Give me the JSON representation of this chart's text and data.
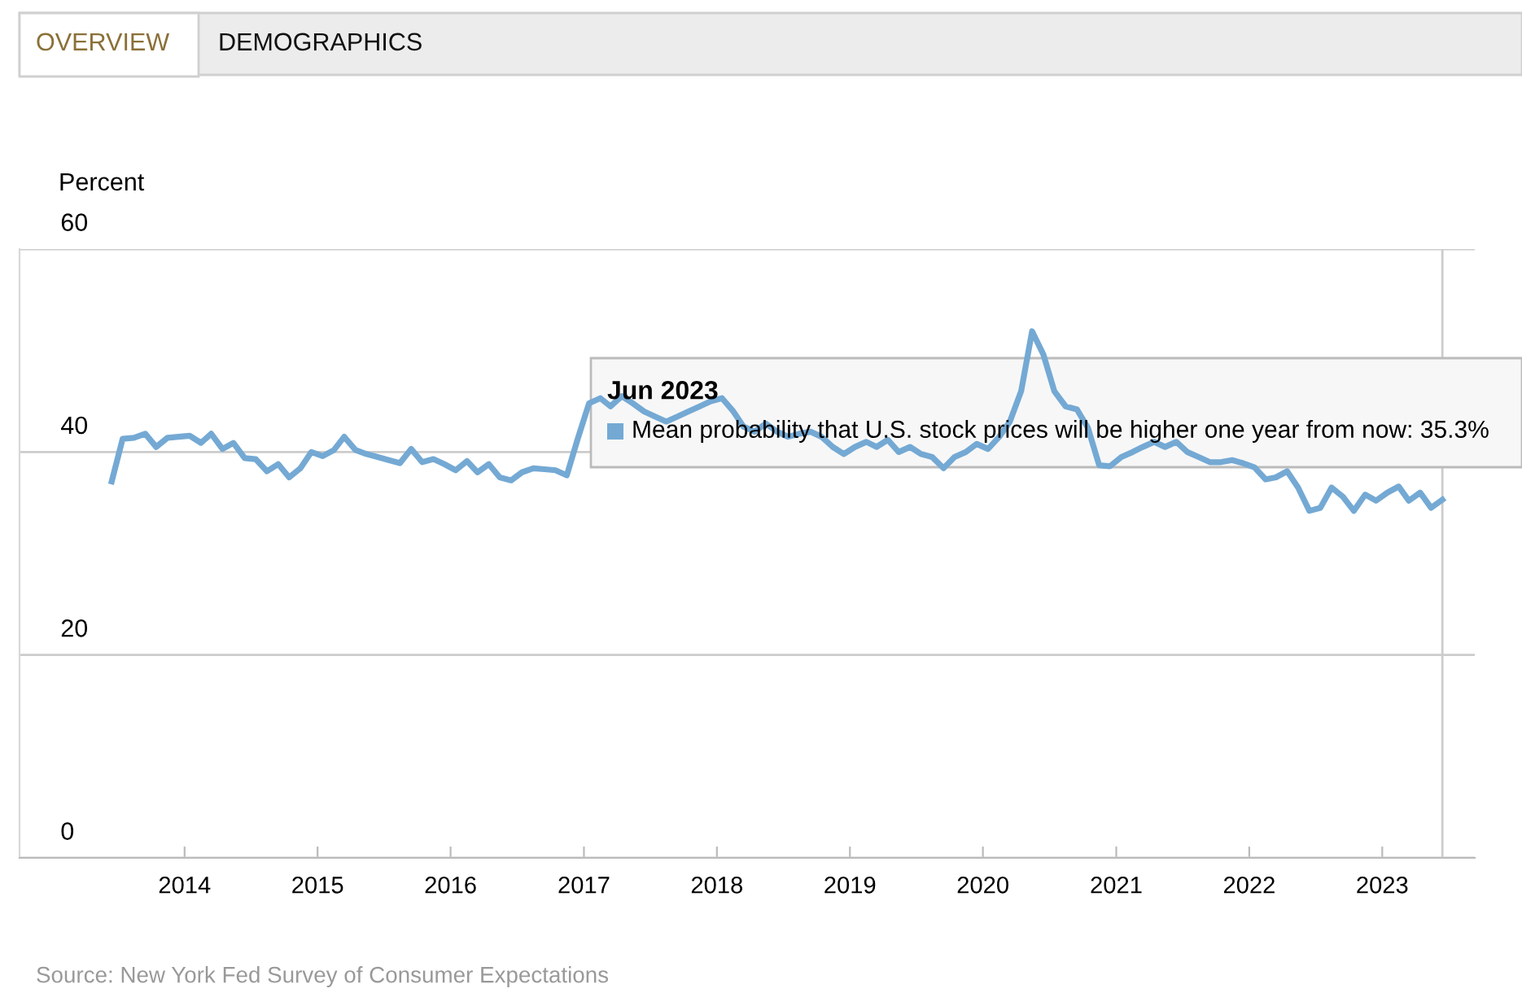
{
  "chart_data": {
    "type": "line",
    "ylabel": "Percent",
    "x": [
      "2013-06",
      "2013-07",
      "2013-08",
      "2013-09",
      "2013-10",
      "2013-11",
      "2013-12",
      "2014-01",
      "2014-02",
      "2014-03",
      "2014-04",
      "2014-05",
      "2014-06",
      "2014-07",
      "2014-08",
      "2014-09",
      "2014-10",
      "2014-11",
      "2014-12",
      "2015-01",
      "2015-02",
      "2015-03",
      "2015-04",
      "2015-05",
      "2015-06",
      "2015-07",
      "2015-08",
      "2015-09",
      "2015-10",
      "2015-11",
      "2015-12",
      "2016-01",
      "2016-02",
      "2016-03",
      "2016-04",
      "2016-05",
      "2016-06",
      "2016-07",
      "2016-08",
      "2016-09",
      "2016-10",
      "2016-11",
      "2016-12",
      "2017-01",
      "2017-02",
      "2017-03",
      "2017-04",
      "2017-05",
      "2017-06",
      "2017-07",
      "2017-08",
      "2017-09",
      "2017-10",
      "2017-11",
      "2017-12",
      "2018-01",
      "2018-02",
      "2018-03",
      "2018-04",
      "2018-05",
      "2018-06",
      "2018-07",
      "2018-08",
      "2018-09",
      "2018-10",
      "2018-11",
      "2018-12",
      "2019-01",
      "2019-02",
      "2019-03",
      "2019-04",
      "2019-05",
      "2019-06",
      "2019-07",
      "2019-08",
      "2019-09",
      "2019-10",
      "2019-11",
      "2019-12",
      "2020-01",
      "2020-02",
      "2020-03",
      "2020-04",
      "2020-05",
      "2020-06",
      "2020-07",
      "2020-08",
      "2020-09",
      "2020-10",
      "2020-11",
      "2020-12",
      "2021-01",
      "2021-02",
      "2021-03",
      "2021-04",
      "2021-05",
      "2021-06",
      "2021-07",
      "2021-08",
      "2021-09",
      "2021-10",
      "2021-11",
      "2021-12",
      "2022-01",
      "2022-02",
      "2022-03",
      "2022-04",
      "2022-05",
      "2022-06",
      "2022-07",
      "2022-08",
      "2022-09",
      "2022-10",
      "2022-11",
      "2022-12",
      "2023-01",
      "2023-02",
      "2023-03",
      "2023-04",
      "2023-05",
      "2023-06"
    ],
    "series": [
      {
        "color": "#74a9d4",
        "values": [
          37.1,
          41.3,
          41.4,
          41.8,
          40.5,
          41.4,
          41.5,
          41.6,
          40.9,
          41.8,
          40.3,
          40.9,
          39.4,
          39.3,
          38.1,
          38.8,
          37.5,
          38.4,
          40.0,
          39.6,
          40.2,
          41.5,
          40.2,
          39.8,
          39.5,
          39.2,
          38.9,
          40.3,
          39.0,
          39.3,
          38.8,
          38.2,
          39.1,
          38.0,
          38.8,
          37.5,
          37.2,
          38.0,
          38.4,
          38.3,
          38.2,
          37.7,
          41.3,
          44.8,
          45.3,
          44.5,
          45.5,
          44.8,
          44.0,
          43.5,
          43.0,
          43.5,
          44.0,
          44.5,
          45.0,
          45.3,
          44.0,
          42.5,
          42.0,
          42.8,
          42.0,
          41.5,
          41.8,
          42.0,
          41.5,
          40.5,
          39.8,
          40.5,
          41.0,
          40.5,
          41.2,
          40.0,
          40.5,
          39.8,
          39.5,
          38.4,
          39.5,
          40.0,
          40.8,
          40.3,
          41.5,
          43.0,
          46.0,
          51.9,
          49.6,
          46.0,
          44.5,
          44.2,
          42.4,
          38.7,
          38.6,
          39.5,
          40.0,
          40.5,
          41.0,
          40.5,
          41.0,
          40.0,
          39.5,
          39.0,
          39.0,
          39.2,
          38.9,
          38.5,
          37.3,
          37.5,
          38.1,
          36.5,
          34.2,
          34.5,
          36.5,
          35.6,
          34.2,
          35.8,
          35.2,
          36.0,
          36.6,
          35.2,
          36.0,
          34.5,
          35.3
        ]
      }
    ],
    "xlim": [
      "2012-10-05",
      "2023-09-12"
    ],
    "xticks": [
      {
        "value": "2014-01-01",
        "label": "2014"
      },
      {
        "value": "2015-01-01",
        "label": "2015"
      },
      {
        "value": "2016-01-01",
        "label": "2016"
      },
      {
        "value": "2017-01-01",
        "label": "2017"
      },
      {
        "value": "2018-01-01",
        "label": "2018"
      },
      {
        "value": "2019-01-01",
        "label": "2019"
      },
      {
        "value": "2020-01-01",
        "label": "2020"
      },
      {
        "value": "2021-01-01",
        "label": "2021"
      },
      {
        "value": "2022-01-01",
        "label": "2022"
      },
      {
        "value": "2023-01-01",
        "label": "2023"
      }
    ],
    "ylim": [
      0,
      60
    ],
    "yticks": [
      0,
      20,
      40,
      60
    ],
    "grid": "y",
    "ref_lines": [
      {
        "axis": "x",
        "value": "2023-06",
        "color": "#cccccc"
      }
    ],
    "annotations": [
      "OVERVIEW",
      "DEMOGRAPHICS",
      "Jun 2023",
      "Mean probability that U.S. stock prices will be higher one year from now: 35.3%",
      "Source: New York Fed Survey of Consumer Expectations"
    ]
  }
}
